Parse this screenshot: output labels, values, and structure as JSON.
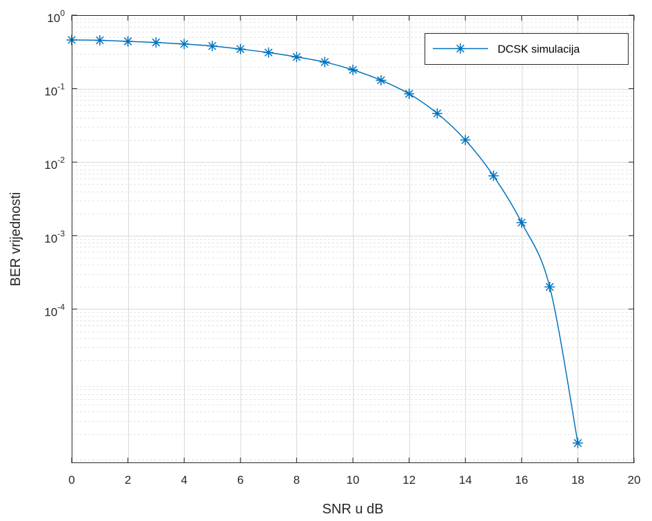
{
  "chart_data": {
    "type": "line",
    "title": "",
    "xlabel": "SNR u dB",
    "ylabel": "BER vrijednosti",
    "x_scale": "linear",
    "y_scale": "log",
    "xlim": [
      0,
      20
    ],
    "ylim": [
      8e-07,
      1
    ],
    "x_ticks": [
      0,
      2,
      4,
      6,
      8,
      10,
      12,
      14,
      16,
      18,
      20
    ],
    "y_ticks": [
      {
        "value": 1,
        "base": "10",
        "exp": "0"
      },
      {
        "value": 0.1,
        "base": "10",
        "exp": "-1"
      },
      {
        "value": 0.01,
        "base": "10",
        "exp": "-2"
      },
      {
        "value": 0.001,
        "base": "10",
        "exp": "-3"
      },
      {
        "value": 0.0001,
        "base": "10",
        "exp": "-4"
      }
    ],
    "grid": true,
    "minor_grid": true,
    "legend": {
      "position": "top-right"
    },
    "series": [
      {
        "name": "DCSK simulacija",
        "color": "#0072bd",
        "marker": "asterisk",
        "x": [
          0,
          1,
          2,
          3,
          4,
          5,
          6,
          7,
          8,
          9,
          10,
          11,
          12,
          13,
          14,
          15,
          16,
          17,
          18
        ],
        "y": [
          0.46,
          0.455,
          0.44,
          0.425,
          0.405,
          0.38,
          0.345,
          0.31,
          0.27,
          0.23,
          0.18,
          0.13,
          0.085,
          0.046,
          0.02,
          0.0065,
          0.0015,
          0.0002,
          1.5e-06
        ]
      }
    ]
  }
}
